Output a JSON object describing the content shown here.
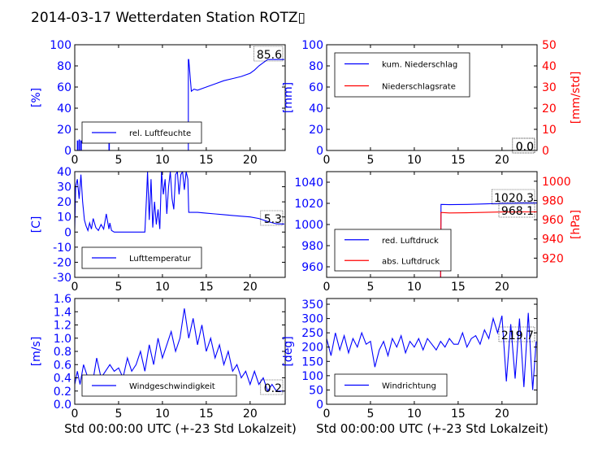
{
  "title": "2014-03-17 Wetterdaten Station ROTZ▯",
  "xlabel": "Std 00:00:00 UTC (+-23 Std Lokalzeit)",
  "colors": {
    "primary": "#0000ff",
    "secondary": "#ff0000",
    "axis": "#000000"
  },
  "chart_data": [
    {
      "type": "line",
      "title": "",
      "ylabel": "[%]",
      "xlim": [
        0,
        24
      ],
      "ylim": [
        0,
        100
      ],
      "xticks": [
        0,
        5,
        10,
        15,
        20
      ],
      "yticks": [
        0,
        20,
        40,
        60,
        80,
        100
      ],
      "legend": "lower-left",
      "last_value_label": "85.6",
      "series": [
        {
          "name": "rel. Luftfeuchte",
          "color": "#0000ff",
          "x": [
            0,
            0.3,
            0.3,
            0.35,
            0.35,
            0.5,
            0.5,
            0.55,
            0.55,
            0.7,
            0.7,
            0.75,
            0.75,
            3.9,
            3.9,
            3.95,
            3.95,
            12.95,
            12.95,
            13.0,
            13.3,
            13.6,
            14.0,
            15.0,
            16.0,
            17.0,
            18.0,
            19.0,
            20.0,
            20.5,
            21.0,
            21.5,
            22.0,
            23.0,
            23.9
          ],
          "y": [
            0,
            0,
            9,
            9,
            0,
            0,
            10,
            10,
            0,
            0,
            9,
            9,
            0,
            0,
            13,
            13,
            0,
            0,
            86,
            86,
            56,
            58,
            57,
            60,
            63,
            66,
            68,
            70,
            73,
            76,
            80,
            83,
            86,
            86,
            86
          ]
        }
      ]
    },
    {
      "type": "line",
      "title": "",
      "ylabel": "[mm]",
      "ylabel_right": "[mm/std]",
      "xlim": [
        0,
        24
      ],
      "ylim": [
        0,
        100
      ],
      "ylim_right": [
        0,
        50
      ],
      "xticks": [
        0,
        5,
        10,
        15,
        20
      ],
      "yticks": [
        0,
        20,
        40,
        60,
        80,
        100
      ],
      "yticks_right": [
        0,
        10,
        20,
        30,
        40,
        50
      ],
      "legend": "upper-left",
      "last_value_labels": [
        "0.0",
        "0.0"
      ],
      "series": [
        {
          "name": "kum. Niederschlag",
          "color": "#0000ff",
          "axis": "left",
          "x": [
            0,
            24
          ],
          "y": [
            0,
            0
          ]
        },
        {
          "name": "Niederschlagsrate",
          "color": "#ff0000",
          "axis": "right",
          "x": [
            13,
            24
          ],
          "y": [
            0,
            0
          ]
        }
      ]
    },
    {
      "type": "line",
      "title": "",
      "ylabel": "[C]",
      "xlim": [
        0,
        24
      ],
      "ylim": [
        -30,
        40
      ],
      "xticks": [
        0,
        5,
        10,
        15,
        20
      ],
      "yticks": [
        -30,
        -20,
        -10,
        0,
        10,
        20,
        30,
        40
      ],
      "legend": "lower-left",
      "last_value_label": "5.3",
      "series": [
        {
          "name": "Lufttemperatur",
          "color": "#0000ff",
          "x": [
            0,
            0.1,
            0.3,
            0.5,
            0.7,
            0.9,
            1.1,
            1.3,
            1.5,
            1.7,
            1.9,
            2.1,
            2.4,
            2.7,
            3.0,
            3.3,
            3.6,
            3.9,
            4.0,
            4.2,
            4.5,
            5.0,
            6.0,
            7.0,
            8.0,
            8.2,
            8.3,
            8.5,
            8.7,
            8.9,
            9.1,
            9.3,
            9.5,
            9.7,
            9.9,
            10.1,
            10.3,
            10.5,
            10.7,
            10.9,
            11.1,
            11.3,
            11.5,
            11.7,
            11.9,
            12.1,
            12.3,
            12.5,
            12.7,
            12.9,
            13.0,
            13.5,
            14.0,
            15.0,
            16.0,
            17.0,
            18.0,
            19.0,
            20.0,
            21.0,
            22.0,
            23.0,
            23.9
          ],
          "y": [
            2,
            30,
            35,
            22,
            38,
            20,
            8,
            4,
            1,
            6,
            2,
            9,
            3,
            1,
            5,
            2,
            12,
            2,
            6,
            1,
            0,
            0,
            0,
            0,
            0,
            25,
            40,
            8,
            35,
            3,
            20,
            5,
            15,
            2,
            40,
            25,
            35,
            12,
            30,
            40,
            22,
            15,
            38,
            40,
            25,
            38,
            40,
            28,
            40,
            35,
            13,
            13,
            13,
            12.5,
            12,
            11.5,
            11,
            10.5,
            10,
            9,
            7,
            5.5,
            5.3
          ]
        }
      ]
    },
    {
      "type": "line",
      "title": "",
      "ylabel": "",
      "ylabel_right": "[hPa]",
      "xlim": [
        0,
        24
      ],
      "ylim": [
        950,
        1050
      ],
      "ylim_right": [
        900,
        1010
      ],
      "xticks": [
        0,
        5,
        10,
        15,
        20
      ],
      "yticks": [
        960,
        980,
        1000,
        1020,
        1040
      ],
      "yticks_right": [
        920,
        940,
        960,
        980,
        1000
      ],
      "legend": "lower-left",
      "last_value_labels": [
        "1020.3",
        "968.1"
      ],
      "series": [
        {
          "name": "red. Luftdruck",
          "color": "#0000ff",
          "axis": "left",
          "x": [
            13,
            13.05,
            14,
            16,
            18,
            20,
            22,
            24
          ],
          "y": [
            950,
            1019,
            1018.8,
            1019,
            1019.5,
            1020,
            1020.3,
            1020.3
          ]
        },
        {
          "name": "abs. Luftdruck",
          "color": "#ff0000",
          "axis": "right",
          "x": [
            13,
            13.05,
            14,
            16,
            18,
            20,
            22,
            24
          ],
          "y": [
            900,
            967.5,
            967,
            967.2,
            967.6,
            968,
            968.1,
            968.1
          ]
        }
      ]
    },
    {
      "type": "line",
      "title": "",
      "ylabel": "[m/s]",
      "xlim": [
        0,
        24
      ],
      "ylim": [
        0,
        1.6
      ],
      "xticks": [
        0,
        5,
        10,
        15,
        20
      ],
      "yticks": [
        0.0,
        0.2,
        0.4,
        0.6,
        0.8,
        1.0,
        1.2,
        1.4,
        1.6
      ],
      "legend": "lower-center",
      "last_value_label": "0.2",
      "series": [
        {
          "name": "Windgeschwindigkeit",
          "color": "#0000ff",
          "x": [
            0,
            0.3,
            0.6,
            1.0,
            1.5,
            2.0,
            2.5,
            3.0,
            3.5,
            4.0,
            4.5,
            5.0,
            5.5,
            6.0,
            6.5,
            7.0,
            7.5,
            8.0,
            8.5,
            9.0,
            9.5,
            10.0,
            10.5,
            11.0,
            11.5,
            12.0,
            12.5,
            13.0,
            13.5,
            14.0,
            14.5,
            15.0,
            15.5,
            16.0,
            16.5,
            17.0,
            17.5,
            18.0,
            18.5,
            19.0,
            19.5,
            20.0,
            20.5,
            21.0,
            21.5,
            22.0,
            22.5,
            23.0,
            23.5,
            23.9
          ],
          "y": [
            0.3,
            0.5,
            0.3,
            0.6,
            0.4,
            0.3,
            0.7,
            0.4,
            0.5,
            0.6,
            0.5,
            0.55,
            0.4,
            0.7,
            0.5,
            0.6,
            0.8,
            0.5,
            0.9,
            0.6,
            1.0,
            0.7,
            0.9,
            1.1,
            0.8,
            1.0,
            1.45,
            1.0,
            1.3,
            0.9,
            1.2,
            0.8,
            1.0,
            0.7,
            0.9,
            0.6,
            0.8,
            0.5,
            0.6,
            0.4,
            0.5,
            0.3,
            0.5,
            0.3,
            0.4,
            0.2,
            0.3,
            0.2,
            0.2,
            0.2
          ]
        }
      ]
    },
    {
      "type": "line",
      "title": "",
      "ylabel": "[deg]",
      "xlim": [
        0,
        24
      ],
      "ylim": [
        0,
        370
      ],
      "xticks": [
        0,
        5,
        10,
        15,
        20
      ],
      "yticks": [
        0,
        50,
        100,
        150,
        200,
        250,
        300,
        350
      ],
      "legend": "lower-left",
      "last_value_label": "219.7",
      "series": [
        {
          "name": "Windrichtung",
          "color": "#0000ff",
          "x": [
            0,
            0.5,
            1.0,
            1.5,
            2.0,
            2.5,
            3.0,
            3.5,
            4.0,
            4.5,
            5.0,
            5.5,
            6.0,
            6.5,
            7.0,
            7.5,
            8.0,
            8.5,
            9.0,
            9.5,
            10.0,
            10.5,
            11.0,
            11.5,
            12.0,
            12.5,
            13.0,
            13.5,
            14.0,
            14.5,
            15.0,
            15.5,
            16.0,
            16.5,
            17.0,
            17.5,
            18.0,
            18.5,
            19.0,
            19.5,
            20.0,
            20.5,
            21.0,
            21.5,
            22.0,
            22.5,
            23.0,
            23.5,
            23.9
          ],
          "y": [
            230,
            170,
            250,
            190,
            240,
            180,
            230,
            200,
            250,
            210,
            220,
            130,
            190,
            220,
            170,
            230,
            200,
            240,
            180,
            220,
            200,
            230,
            190,
            230,
            210,
            190,
            220,
            200,
            230,
            210,
            210,
            250,
            200,
            230,
            240,
            210,
            260,
            230,
            300,
            250,
            310,
            80,
            280,
            90,
            300,
            60,
            320,
            50,
            220
          ]
        }
      ]
    }
  ]
}
